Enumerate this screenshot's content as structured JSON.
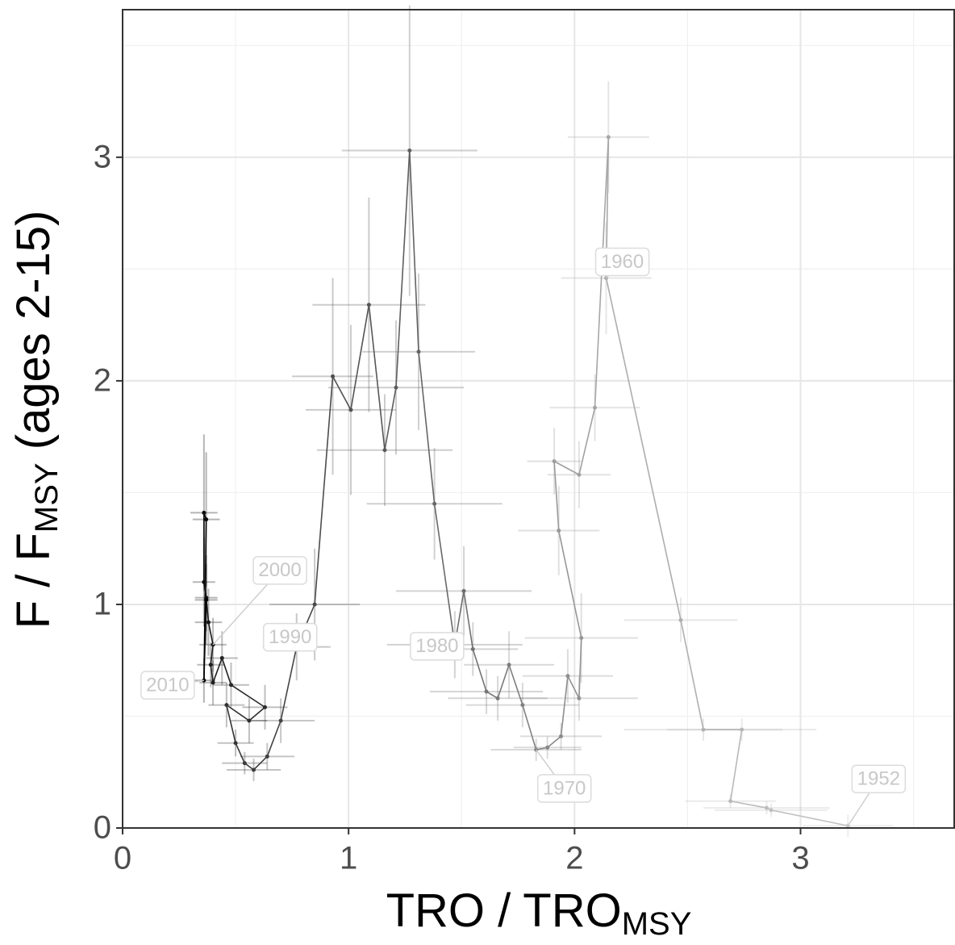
{
  "chart_data": {
    "type": "line",
    "x_label_parts": [
      "TRO / TRO",
      "MSY"
    ],
    "y_label_parts": [
      "F / F",
      "MSY",
      " (ages 2-15)"
    ],
    "xlim": [
      0,
      3.68
    ],
    "ylim": [
      0,
      3.66
    ],
    "xticks": [
      0,
      1,
      2,
      3
    ],
    "yticks": [
      0,
      1,
      2,
      3
    ],
    "minor_xticks": [
      0.5,
      1.5,
      2.5,
      3.5
    ],
    "minor_yticks": [
      0.5,
      1.5,
      2.5,
      3.5
    ],
    "grid": true,
    "color_old": "#c4c4c4",
    "color_new": "#000000",
    "x": [
      3.21,
      2.87,
      2.85,
      2.69,
      2.74,
      2.57,
      2.47,
      2.14,
      2.15,
      2.09,
      2.02,
      1.91,
      1.93,
      2.03,
      2.02,
      1.97,
      1.94,
      1.88,
      1.83,
      1.77,
      1.71,
      1.66,
      1.61,
      1.55,
      1.51,
      1.47,
      1.38,
      1.31,
      1.27,
      1.21,
      1.16,
      1.09,
      1.01,
      0.93,
      0.85,
      0.77,
      0.7,
      0.64,
      0.58,
      0.54,
      0.5,
      0.46,
      0.56,
      0.63,
      0.48,
      0.44,
      0.4,
      0.39,
      0.4,
      0.38,
      0.37,
      0.36,
      0.36,
      0.37,
      0.36,
      0.37
    ],
    "y": [
      0.01,
      0.08,
      0.09,
      0.12,
      0.44,
      0.44,
      0.93,
      2.46,
      3.09,
      1.88,
      1.58,
      1.64,
      1.33,
      0.85,
      0.58,
      0.68,
      0.41,
      0.36,
      0.35,
      0.55,
      0.73,
      0.58,
      0.61,
      0.8,
      1.06,
      0.82,
      1.45,
      2.13,
      3.03,
      1.97,
      1.69,
      2.34,
      1.87,
      2.02,
      1.0,
      0.81,
      0.48,
      0.32,
      0.26,
      0.29,
      0.38,
      0.55,
      0.48,
      0.54,
      0.64,
      0.76,
      0.65,
      0.73,
      0.82,
      0.92,
      1.03,
      1.1,
      1.41,
      1.38,
      0.66,
      1.02
    ],
    "x_error": [
      0.2,
      0.25,
      0.28,
      0.2,
      0.33,
      0.35,
      0.25,
      0.2,
      0.18,
      0.2,
      0.14,
      0.12,
      0.18,
      0.25,
      0.26,
      0.2,
      0.18,
      0.15,
      0.2,
      0.25,
      0.2,
      0.22,
      0.25,
      0.2,
      0.3,
      0.3,
      0.3,
      0.25,
      0.3,
      0.3,
      0.3,
      0.25,
      0.2,
      0.18,
      0.2,
      0.15,
      0.15,
      0.12,
      0.12,
      0.1,
      0.08,
      0.08,
      0.08,
      0.1,
      0.08,
      0.07,
      0.06,
      0.06,
      0.06,
      0.06,
      0.05,
      0.05,
      0.06,
      0.06,
      0.05,
      0.05
    ],
    "y_error": [
      0.05,
      0.03,
      0.03,
      0.03,
      0.05,
      0.05,
      0.1,
      0.25,
      0.25,
      0.15,
      0.15,
      0.15,
      0.2,
      0.2,
      0.1,
      0.12,
      0.06,
      0.05,
      0.05,
      0.1,
      0.15,
      0.1,
      0.1,
      0.12,
      0.2,
      0.15,
      0.25,
      0.35,
      0.65,
      0.3,
      0.25,
      0.48,
      0.38,
      0.44,
      0.25,
      0.15,
      0.1,
      0.06,
      0.05,
      0.05,
      0.06,
      0.1,
      0.1,
      0.1,
      0.1,
      0.12,
      0.1,
      0.1,
      0.12,
      0.15,
      0.15,
      0.2,
      0.35,
      0.3,
      0.1,
      0.2
    ],
    "annotations": [
      {
        "text": "1952",
        "x": 3.21,
        "y": 0.01
      },
      {
        "text": "1960",
        "x": 2.14,
        "y": 2.46
      },
      {
        "text": "1970",
        "x": 1.83,
        "y": 0.35
      },
      {
        "text": "1980",
        "x": 1.47,
        "y": 0.82
      },
      {
        "text": "1990",
        "x": 0.77,
        "y": 0.81
      },
      {
        "text": "2000",
        "x": 0.4,
        "y": 0.82
      },
      {
        "text": "2010",
        "x": 0.36,
        "y": 0.66
      }
    ]
  }
}
